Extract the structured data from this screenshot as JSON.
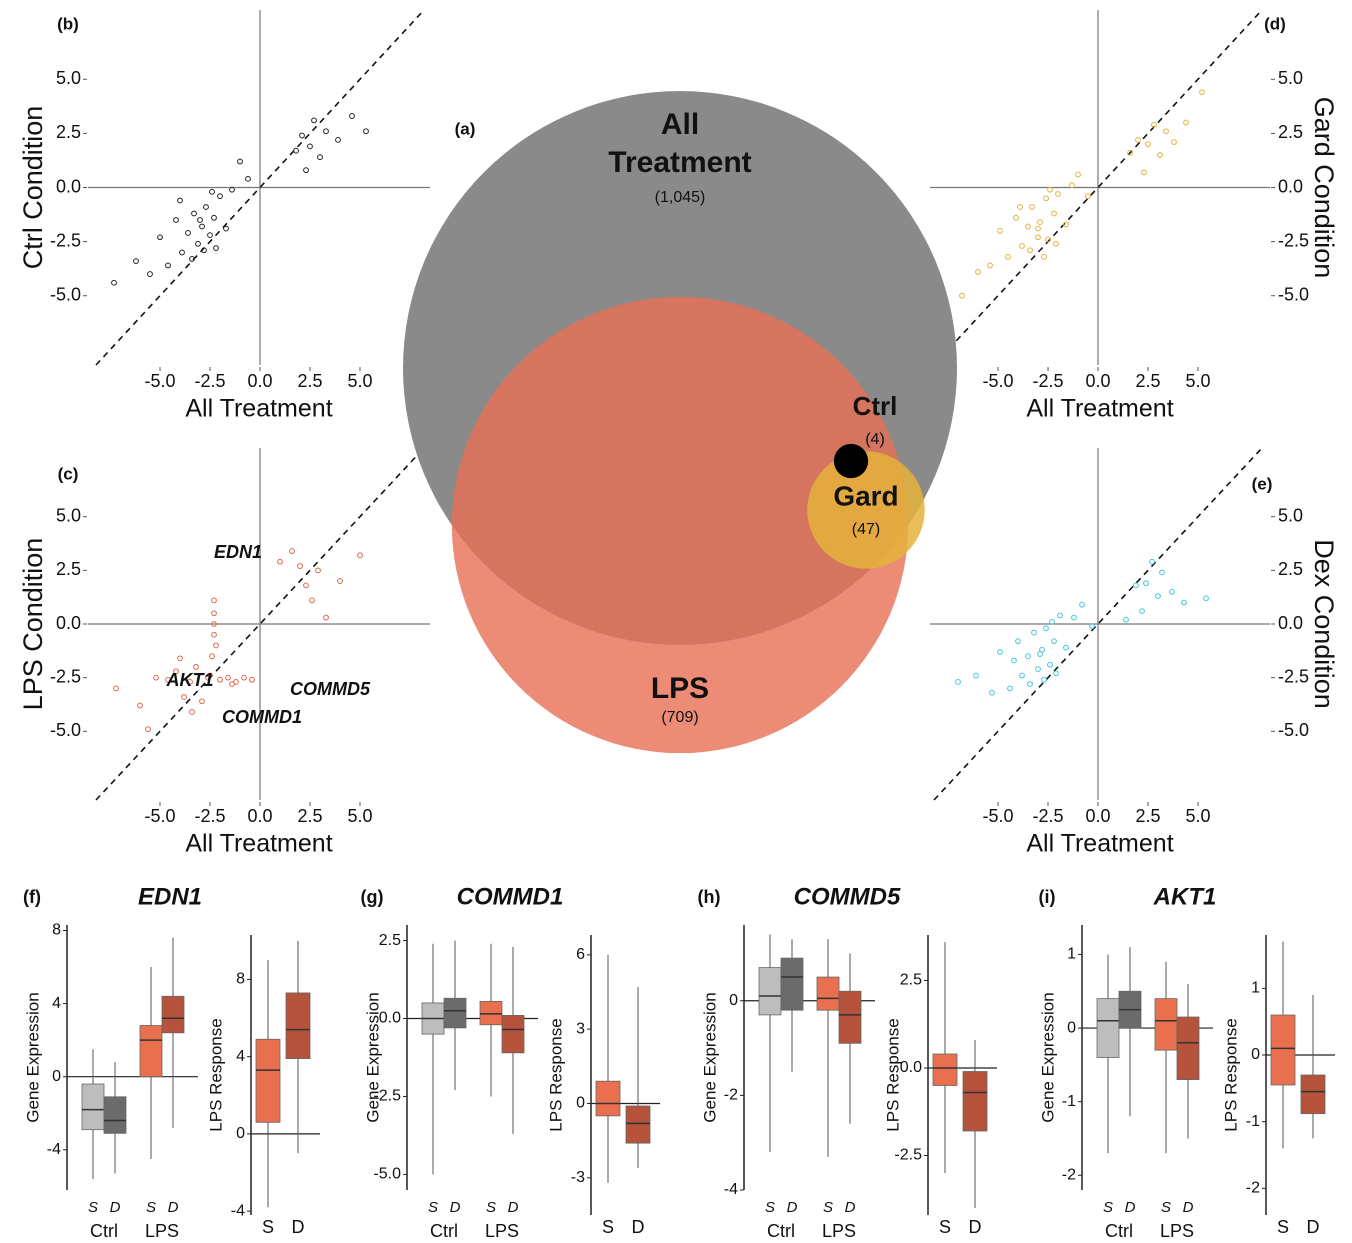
{
  "chart_data": [
    {
      "type": "venn",
      "panel_label": "(a)",
      "labels": [
        "All Treatment",
        "LPS",
        "Gard",
        "Ctrl"
      ],
      "values": [
        1045,
        709,
        47,
        4
      ],
      "value_labels": [
        "(1,045)",
        "(709)",
        "(47)",
        "(4)"
      ],
      "colors": [
        "#8a8a8a",
        "#e76f55",
        "#e5b23b",
        "#000000"
      ]
    },
    {
      "type": "scatter",
      "panel_label": "(b)",
      "xlabel": "All Treatment",
      "ylabel": "Ctrl Condition",
      "color": "#222222",
      "xlim": [
        -8.6,
        8.5
      ],
      "ylim": [
        -8.2,
        8.2
      ],
      "xticks": [
        {
          "value": -5,
          "label": "-5.0"
        },
        -2.5,
        {
          "value": 0,
          "label": "0.0"
        },
        2.5,
        {
          "value": 5,
          "label": "5.0"
        }
      ],
      "yticks": [
        {
          "value": -5,
          "label": "-5.0"
        },
        -2.5,
        {
          "value": 0,
          "label": "0.0"
        },
        2.5,
        {
          "value": 5,
          "label": "5.0"
        }
      ],
      "x": [
        -7.3,
        -6.2,
        -5.5,
        -5.0,
        -4.6,
        -4.2,
        -3.9,
        -3.6,
        -3.3,
        -3.1,
        -2.9,
        -2.7,
        -2.5,
        -2.3,
        -2.0,
        -1.7,
        -1.4,
        -1.0,
        -0.6,
        -3.4,
        -2.8,
        -2.2,
        -4.0,
        1.8,
        2.1,
        2.3,
        2.5,
        2.7,
        3.0,
        3.3,
        3.9,
        4.6,
        5.3,
        -3.0,
        -2.4
      ],
      "y": [
        -4.4,
        -3.4,
        -4.0,
        -2.3,
        -3.6,
        -1.5,
        -3.0,
        -2.1,
        -1.2,
        -2.6,
        -1.8,
        -0.9,
        -2.2,
        -1.4,
        -0.4,
        -1.9,
        -0.1,
        1.2,
        0.4,
        -3.3,
        -2.9,
        -2.8,
        -0.6,
        1.7,
        2.4,
        0.8,
        1.9,
        3.1,
        1.4,
        2.6,
        2.2,
        3.3,
        2.6,
        -1.5,
        -0.2
      ]
    },
    {
      "type": "scatter",
      "panel_label": "(c)",
      "xlabel": "All Treatment",
      "ylabel": "LPS Condition",
      "color": "#e0664a",
      "xlim": [
        -8.6,
        8.5
      ],
      "ylim": [
        -8.2,
        8.2
      ],
      "xticks": [
        {
          "value": -5,
          "label": "-5.0"
        },
        -2.5,
        {
          "value": 0,
          "label": "0.0"
        },
        2.5,
        {
          "value": 5,
          "label": "5.0"
        }
      ],
      "yticks": [
        {
          "value": -5,
          "label": "-5.0"
        },
        -2.5,
        {
          "value": 0,
          "label": "0.0"
        },
        2.5,
        {
          "value": 5,
          "label": "5.0"
        }
      ],
      "x": [
        -7.2,
        -6.0,
        -5.2,
        -4.6,
        -4.2,
        -3.8,
        -3.5,
        -3.2,
        -2.9,
        -2.6,
        -2.4,
        -2.3,
        -2.3,
        -2.3,
        -2.2,
        -2.3,
        -2.0,
        -1.6,
        -1.2,
        -0.8,
        -0.4,
        -3.4,
        -4.0,
        1.0,
        1.6,
        2.0,
        2.3,
        2.6,
        2.9,
        3.3,
        4.0,
        5.0,
        -1.4,
        -5.6,
        -2.5
      ],
      "y": [
        -3.0,
        -3.8,
        -2.5,
        -2.6,
        -2.2,
        -3.4,
        -2.7,
        -2.0,
        -3.6,
        -2.5,
        -1.5,
        -0.5,
        0.5,
        1.1,
        -1.0,
        0.0,
        -2.6,
        -2.5,
        -2.7,
        -2.5,
        -2.6,
        -4.1,
        -1.6,
        2.9,
        3.4,
        2.7,
        1.8,
        1.1,
        2.5,
        0.3,
        2.0,
        3.2,
        -2.8,
        -4.9,
        -2.4
      ],
      "annotations": [
        "EDN1",
        "AKT1",
        "COMMD5",
        "COMMD1"
      ]
    },
    {
      "type": "scatter",
      "panel_label": "(d)",
      "xlabel": "All Treatment",
      "ylabel": "Gard Condition",
      "color": "#e2b13a",
      "xlim": [
        -8.4,
        8.6
      ],
      "ylim": [
        -8.2,
        8.2
      ],
      "xticks": [
        {
          "value": -5,
          "label": "-5.0"
        },
        -2.5,
        {
          "value": 0,
          "label": "0.0"
        },
        2.5,
        {
          "value": 5,
          "label": "5.0"
        }
      ],
      "yticks": [
        {
          "value": -5,
          "label": "-5.0"
        },
        -2.5,
        {
          "value": 0,
          "label": "0.0"
        },
        2.5,
        {
          "value": 5,
          "label": "5.0"
        }
      ],
      "x": [
        -6.8,
        -6.0,
        -5.4,
        -4.9,
        -4.5,
        -4.1,
        -3.8,
        -3.5,
        -3.3,
        -3.0,
        -2.9,
        -2.6,
        -2.5,
        -2.2,
        -2.0,
        -1.6,
        -1.3,
        -1.0,
        -0.5,
        -3.4,
        -2.7,
        -2.1,
        -3.9,
        1.6,
        2.0,
        2.3,
        2.5,
        2.8,
        3.1,
        3.4,
        3.8,
        4.4,
        5.2,
        -3.0,
        -2.4
      ],
      "y": [
        -5.0,
        -3.9,
        -3.6,
        -2.0,
        -3.2,
        -1.4,
        -2.7,
        -1.8,
        -0.9,
        -2.3,
        -1.6,
        -0.5,
        -2.4,
        -1.2,
        -0.3,
        -1.7,
        0.1,
        0.6,
        -0.4,
        -2.9,
        -3.2,
        -2.6,
        -0.9,
        1.6,
        2.2,
        0.7,
        2.0,
        2.9,
        1.5,
        2.6,
        2.1,
        3.0,
        4.4,
        -1.9,
        -0.1
      ]
    },
    {
      "type": "scatter",
      "panel_label": "(e)",
      "xlabel": "All Treatment",
      "ylabel": "Dex Condition",
      "color": "#45c3df",
      "xlim": [
        -8.4,
        8.6
      ],
      "ylim": [
        -8.2,
        8.2
      ],
      "xticks": [
        {
          "value": -5,
          "label": "-5.0"
        },
        -2.5,
        {
          "value": 0,
          "label": "0.0"
        },
        2.5,
        {
          "value": 5,
          "label": "5.0"
        }
      ],
      "yticks": [
        {
          "value": -5,
          "label": "-5.0"
        },
        -2.5,
        {
          "value": 0,
          "label": "0.0"
        },
        2.5,
        {
          "value": 5,
          "label": "5.0"
        }
      ],
      "x": [
        -7.0,
        -6.1,
        -5.3,
        -4.9,
        -4.4,
        -4.0,
        -3.8,
        -3.5,
        -3.2,
        -3.0,
        -2.8,
        -2.6,
        -2.4,
        -2.2,
        -1.9,
        -1.6,
        -1.2,
        -0.8,
        -0.3,
        -3.4,
        -2.7,
        -2.1,
        -4.2,
        1.4,
        1.9,
        2.2,
        2.4,
        2.7,
        3.0,
        3.2,
        3.7,
        4.3,
        5.4,
        -2.9,
        -2.3
      ],
      "y": [
        -2.7,
        -2.4,
        -3.2,
        -1.3,
        -3.0,
        -0.8,
        -2.4,
        -1.5,
        -0.4,
        -2.1,
        -1.2,
        -0.2,
        -1.9,
        -0.8,
        0.4,
        -1.1,
        0.3,
        0.9,
        -0.1,
        -2.8,
        -2.6,
        -2.3,
        -1.7,
        0.2,
        1.8,
        0.6,
        1.9,
        2.9,
        1.3,
        2.4,
        1.5,
        1.0,
        1.2,
        -1.4,
        0.1
      ]
    },
    {
      "type": "box",
      "panel_label": "(f)",
      "title": "EDN1",
      "subplots": [
        {
          "ylabel": "Gene Expression",
          "ylim": [
            -6.2,
            8.3
          ],
          "yticks": [
            8,
            4,
            0,
            -4
          ],
          "categories": [
            "S",
            "D",
            "S",
            "D"
          ],
          "groups": [
            "Ctrl",
            "LPS"
          ],
          "colors": [
            "#bdbdbd",
            "#6b6b6b",
            "#e8704f",
            "#b5533c"
          ],
          "stats": [
            [
              -5.6,
              -2.9,
              -1.8,
              -0.4,
              1.5
            ],
            [
              -5.3,
              -3.1,
              -2.4,
              -1.1,
              0.8
            ],
            [
              -4.5,
              0.0,
              2.0,
              2.8,
              6.0
            ],
            [
              -2.8,
              2.4,
              3.2,
              4.4,
              7.6
            ]
          ]
        },
        {
          "ylabel": "LPS Response",
          "ylim": [
            -4.2,
            10.3
          ],
          "yticks": [
            8,
            4,
            0,
            -4
          ],
          "categories": [
            "S",
            "D"
          ],
          "colors": [
            "#e8704f",
            "#b5533c"
          ],
          "stats": [
            [
              -3.8,
              0.6,
              3.3,
              4.9,
              9.0
            ],
            [
              -1.0,
              3.9,
              5.4,
              7.3,
              10.0
            ]
          ]
        }
      ]
    },
    {
      "type": "box",
      "panel_label": "(g)",
      "title": "COMMD1",
      "subplots": [
        {
          "ylabel": "Gene Expression",
          "ylim": [
            -5.5,
            3
          ],
          "yticks": [
            2.5,
            {
              "value": 0,
              "label": "0.0"
            },
            -2.5,
            {
              "value": -5,
              "label": "-5.0"
            }
          ],
          "categories": [
            "S",
            "D",
            "S",
            "D"
          ],
          "groups": [
            "Ctrl",
            "LPS"
          ],
          "colors": [
            "#bdbdbd",
            "#6b6b6b",
            "#e8704f",
            "#b5533c"
          ],
          "stats": [
            [
              -5.0,
              -0.5,
              0.0,
              0.5,
              2.4
            ],
            [
              -2.3,
              -0.3,
              0.25,
              0.65,
              2.5
            ],
            [
              -2.5,
              -0.2,
              0.15,
              0.55,
              2.4
            ],
            [
              -3.7,
              -1.1,
              -0.35,
              0.1,
              2.3
            ]
          ]
        },
        {
          "ylabel": "LPS Response",
          "ylim": [
            -4.5,
            6.8
          ],
          "yticks": [
            6,
            3,
            0,
            -3
          ],
          "categories": [
            "S",
            "D"
          ],
          "colors": [
            "#e8704f",
            "#b5533c"
          ],
          "stats": [
            [
              -3.2,
              -0.5,
              0.0,
              0.9,
              6.0
            ],
            [
              -2.6,
              -1.6,
              -0.8,
              -0.1,
              4.7
            ]
          ]
        }
      ]
    },
    {
      "type": "box",
      "panel_label": "(h)",
      "title": "COMMD5",
      "subplots": [
        {
          "ylabel": "Gene Expression",
          "ylim": [
            -4,
            1.6
          ],
          "yticks": [
            0,
            -2,
            -4
          ],
          "categories": [
            "S",
            "D",
            "S",
            "D"
          ],
          "groups": [
            "Ctrl",
            "LPS"
          ],
          "colors": [
            "#bdbdbd",
            "#6b6b6b",
            "#e8704f",
            "#b5533c"
          ],
          "stats": [
            [
              -3.2,
              -0.3,
              0.1,
              0.7,
              1.4
            ],
            [
              -1.5,
              -0.2,
              0.5,
              0.9,
              1.3
            ],
            [
              -3.3,
              -0.2,
              0.05,
              0.5,
              1.3
            ],
            [
              -2.6,
              -0.9,
              -0.3,
              0.2,
              1.0
            ]
          ]
        },
        {
          "ylabel": "LPS Response",
          "ylim": [
            -4.2,
            3.8
          ],
          "yticks": [
            2.5,
            {
              "value": 0,
              "label": "0.0"
            },
            -2.5
          ],
          "categories": [
            "S",
            "D"
          ],
          "colors": [
            "#e8704f",
            "#b5533c"
          ],
          "stats": [
            [
              -3.0,
              -0.5,
              0.0,
              0.4,
              3.6
            ],
            [
              -4.0,
              -1.8,
              -0.7,
              -0.1,
              0.8
            ]
          ]
        }
      ]
    },
    {
      "type": "box",
      "panel_label": "(i)",
      "title": "AKT1",
      "subplots": [
        {
          "ylabel": "Gene Expression",
          "ylim": [
            -2.2,
            1.4
          ],
          "yticks": [
            1,
            0,
            -1,
            -2
          ],
          "categories": [
            "S",
            "D",
            "S",
            "D"
          ],
          "groups": [
            "Ctrl",
            "LPS"
          ],
          "colors": [
            "#bdbdbd",
            "#6b6b6b",
            "#e8704f",
            "#b5533c"
          ],
          "stats": [
            [
              -1.7,
              -0.4,
              0.1,
              0.4,
              1.0
            ],
            [
              -1.2,
              0.0,
              0.25,
              0.5,
              1.1
            ],
            [
              -1.7,
              -0.3,
              0.1,
              0.4,
              0.9
            ],
            [
              -1.5,
              -0.7,
              -0.2,
              0.15,
              0.6
            ]
          ]
        },
        {
          "ylabel": "LPS Response",
          "ylim": [
            -2.4,
            1.8
          ],
          "yticks": [
            1,
            0,
            -1,
            -2
          ],
          "categories": [
            "S",
            "D"
          ],
          "colors": [
            "#e8704f",
            "#b5533c"
          ],
          "stats": [
            [
              -1.4,
              -0.45,
              0.1,
              0.6,
              1.7
            ],
            [
              -1.25,
              -0.88,
              -0.55,
              -0.3,
              0.9
            ]
          ]
        }
      ]
    }
  ]
}
